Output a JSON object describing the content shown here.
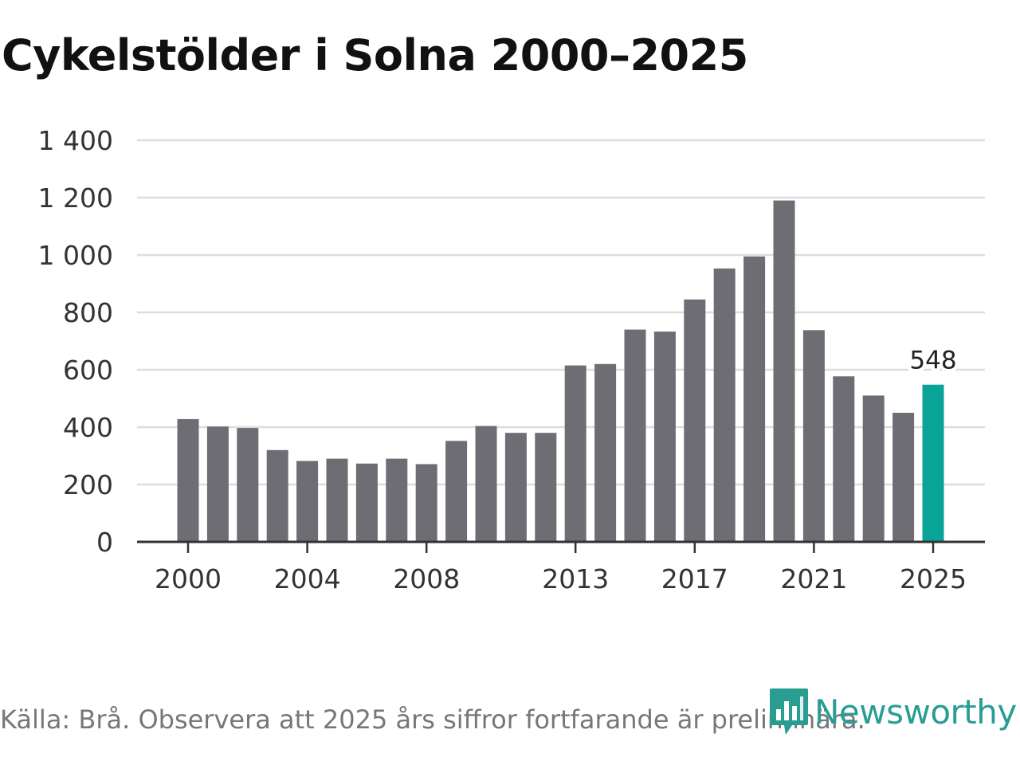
{
  "title": "Cykelstölder i Solna 2000–2025",
  "footer": {
    "source_note": "Källa: Brå. Observera att 2025 års siffror fortfarande är preliminära."
  },
  "brand": {
    "name": "Newsworthy",
    "icon": "newsworthy-logo-icon",
    "color": "#2a9d93"
  },
  "colors": {
    "bar": "#6e6d73",
    "highlight": "#0aa398",
    "grid": "#dddddd",
    "axis": "#333333"
  },
  "chart_data": {
    "type": "bar",
    "title": "Cykelstölder i Solna 2000–2025",
    "xlabel": "",
    "ylabel": "",
    "ylim": [
      0,
      1400
    ],
    "yticks": [
      0,
      200,
      400,
      600,
      800,
      1000,
      1200,
      1400
    ],
    "ytick_labels": [
      "0",
      "200",
      "400",
      "600",
      "800",
      "1 000",
      "1 200",
      "1 400"
    ],
    "categories": [
      2000,
      2001,
      2002,
      2003,
      2004,
      2005,
      2006,
      2007,
      2008,
      2009,
      2010,
      2011,
      2012,
      2013,
      2014,
      2015,
      2016,
      2017,
      2018,
      2019,
      2020,
      2021,
      2022,
      2023,
      2024,
      2025
    ],
    "xtick_labels": [
      "2000",
      "2004",
      "2008",
      "2013",
      "2017",
      "2021",
      "2025"
    ],
    "values": [
      428,
      402,
      397,
      320,
      282,
      290,
      273,
      290,
      271,
      352,
      404,
      380,
      380,
      615,
      620,
      740,
      733,
      845,
      953,
      995,
      1190,
      738,
      577,
      510,
      450,
      548
    ],
    "highlight_category": 2025,
    "annotation": "548",
    "grid": true
  }
}
